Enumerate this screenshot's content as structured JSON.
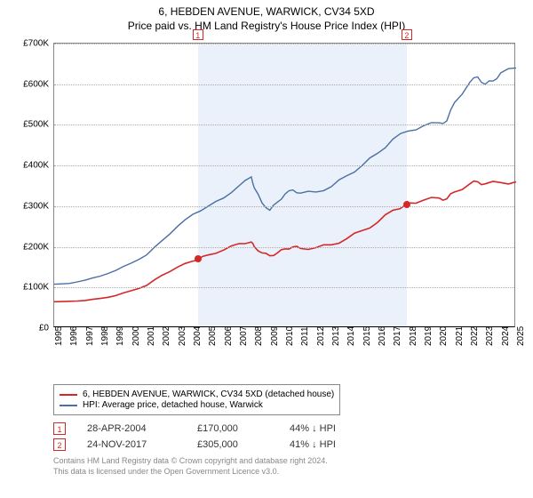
{
  "title_line1": "6, HEBDEN AVENUE, WARWICK, CV34 5XD",
  "title_line2": "Price paid vs. HM Land Registry's House Price Index (HPI)",
  "chart": {
    "type": "line",
    "background_color": "#ffffff",
    "shaded_region_color": "#eaf1fa",
    "grid_color": "#aaaaaa",
    "axis_color": "#888888",
    "xlim": [
      1995,
      2025
    ],
    "ylim": [
      0,
      700000
    ],
    "ytick_step": 100000,
    "yticks": [
      "£0",
      "£100K",
      "£200K",
      "£300K",
      "£400K",
      "£500K",
      "£600K",
      "£700K"
    ],
    "xticks": [
      1995,
      1996,
      1997,
      1998,
      1999,
      2000,
      2001,
      2002,
      2003,
      2004,
      2005,
      2006,
      2007,
      2008,
      2009,
      2010,
      2011,
      2012,
      2013,
      2014,
      2015,
      2016,
      2017,
      2018,
      2019,
      2020,
      2021,
      2022,
      2023,
      2024,
      2025
    ],
    "shaded_start_year": 2004.33,
    "shaded_end_year": 2017.9,
    "series": [
      {
        "name": "property_price",
        "legend": "6, HEBDEN AVENUE, WARWICK, CV34 5XD (detached house)",
        "color": "#d62728",
        "line_width": 1.6,
        "data": [
          [
            1995,
            65000
          ],
          [
            1996,
            66000
          ],
          [
            1997,
            68000
          ],
          [
            1998,
            73000
          ],
          [
            1999,
            80000
          ],
          [
            2000,
            92000
          ],
          [
            2001,
            105000
          ],
          [
            2002,
            130000
          ],
          [
            2003,
            150000
          ],
          [
            2004,
            165000
          ],
          [
            2004.33,
            170000
          ],
          [
            2005,
            180000
          ],
          [
            2006,
            192000
          ],
          [
            2007,
            208000
          ],
          [
            2007.8,
            212000
          ],
          [
            2008,
            200000
          ],
          [
            2008.5,
            185000
          ],
          [
            2009,
            178000
          ],
          [
            2009.5,
            185000
          ],
          [
            2010,
            195000
          ],
          [
            2010.5,
            200000
          ],
          [
            2011,
            196000
          ],
          [
            2012,
            198000
          ],
          [
            2013,
            205000
          ],
          [
            2014,
            220000
          ],
          [
            2015,
            240000
          ],
          [
            2016,
            260000
          ],
          [
            2017,
            290000
          ],
          [
            2017.9,
            305000
          ],
          [
            2018,
            308000
          ],
          [
            2019,
            315000
          ],
          [
            2020,
            320000
          ],
          [
            2020.5,
            318000
          ],
          [
            2021,
            335000
          ],
          [
            2022,
            355000
          ],
          [
            2022.5,
            360000
          ],
          [
            2023,
            355000
          ],
          [
            2024,
            358000
          ],
          [
            2025,
            360000
          ]
        ]
      },
      {
        "name": "hpi",
        "legend": "HPI: Average price, detached house, Warwick",
        "color": "#4a6fa5",
        "line_width": 1.4,
        "data": [
          [
            1995,
            108000
          ],
          [
            1996,
            110000
          ],
          [
            1997,
            118000
          ],
          [
            1998,
            128000
          ],
          [
            1999,
            142000
          ],
          [
            2000,
            160000
          ],
          [
            2001,
            180000
          ],
          [
            2002,
            215000
          ],
          [
            2003,
            250000
          ],
          [
            2004,
            280000
          ],
          [
            2005,
            300000
          ],
          [
            2006,
            320000
          ],
          [
            2007,
            350000
          ],
          [
            2007.8,
            372000
          ],
          [
            2008,
            345000
          ],
          [
            2008.5,
            308000
          ],
          [
            2009,
            290000
          ],
          [
            2009.5,
            310000
          ],
          [
            2010,
            330000
          ],
          [
            2010.5,
            340000
          ],
          [
            2011,
            332000
          ],
          [
            2012,
            335000
          ],
          [
            2013,
            348000
          ],
          [
            2014,
            375000
          ],
          [
            2015,
            400000
          ],
          [
            2016,
            430000
          ],
          [
            2017,
            465000
          ],
          [
            2018,
            485000
          ],
          [
            2019,
            498000
          ],
          [
            2020,
            505000
          ],
          [
            2020.5,
            510000
          ],
          [
            2021,
            555000
          ],
          [
            2022,
            605000
          ],
          [
            2022.5,
            618000
          ],
          [
            2023,
            600000
          ],
          [
            2023.5,
            608000
          ],
          [
            2024,
            628000
          ],
          [
            2025,
            640000
          ]
        ]
      }
    ],
    "markers": [
      {
        "id": "1",
        "year": 2004.33,
        "value": 170000,
        "color": "#d62728"
      },
      {
        "id": "2",
        "year": 2017.9,
        "value": 305000,
        "color": "#d62728"
      }
    ]
  },
  "transactions": [
    {
      "id": "1",
      "date": "28-APR-2004",
      "price": "£170,000",
      "delta": "44% ↓ HPI",
      "color": "#d62728"
    },
    {
      "id": "2",
      "date": "24-NOV-2017",
      "price": "£305,000",
      "delta": "41% ↓ HPI",
      "color": "#d62728"
    }
  ],
  "footer_line1": "Contains HM Land Registry data © Crown copyright and database right 2024.",
  "footer_line2": "This data is licensed under the Open Government Licence v3.0."
}
